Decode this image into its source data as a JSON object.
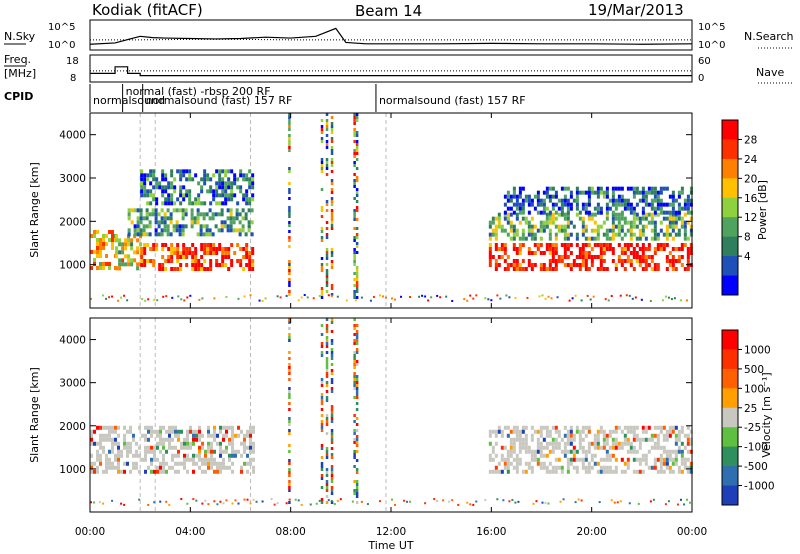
{
  "header": {
    "title_left": "Kodiak (fitACF)",
    "title_center": "Beam 14",
    "title_right": "19/Mar/2013"
  },
  "colors": {
    "axis": "#000000",
    "gap_dash": "#bbbbbb"
  },
  "chart_data": [
    {
      "type": "line",
      "panel": "noise",
      "left_label": "N.Sky",
      "right_label": "N.Search",
      "y_ticks_left": [
        "10^5",
        "10^0"
      ],
      "y_ticks_right": [
        "10^5",
        "10^0"
      ],
      "x_range_hours": [
        0,
        24
      ],
      "series": [
        {
          "style": "solid",
          "values_hours": [
            0,
            1,
            2,
            2.5,
            3,
            4,
            5,
            6,
            7,
            8,
            9,
            9.8,
            10.2,
            11,
            12,
            14,
            16,
            18,
            20,
            22,
            24
          ],
          "values_log10": [
            0.4,
            0.7,
            2.2,
            1.9,
            1.8,
            1.7,
            1.6,
            1.7,
            2.0,
            1.8,
            2.2,
            4.0,
            0.8,
            0.5,
            0.5,
            0.5,
            0.6,
            0.5,
            0.5,
            0.4,
            0.5
          ]
        },
        {
          "style": "dotted",
          "values_hours": [
            0,
            2,
            4,
            6,
            8,
            10,
            12,
            14,
            16,
            18,
            20,
            22,
            24
          ],
          "values_log10": [
            1.4,
            1.4,
            1.5,
            1.5,
            1.4,
            1.4,
            1.4,
            1.4,
            1.4,
            1.4,
            1.4,
            1.4,
            1.4
          ]
        }
      ]
    },
    {
      "type": "line",
      "panel": "frequency",
      "left_label_line1": "Freq.",
      "left_label_line2": "[MHz]",
      "right_label": "Nave",
      "y_ticks_left": [
        "18",
        "8"
      ],
      "y_ticks_right": [
        "60",
        "0"
      ],
      "series": [
        {
          "style": "solid",
          "values_hours": [
            0,
            1,
            1.5,
            2,
            6,
            8,
            10,
            12,
            14,
            16,
            18,
            20,
            22,
            24
          ],
          "values_mhz": [
            11,
            14,
            11,
            10,
            10,
            10,
            10,
            10,
            10,
            10,
            10,
            10,
            10,
            10
          ]
        },
        {
          "style": "dotted",
          "values_hours": [
            0,
            4,
            8,
            12,
            16,
            20,
            24
          ],
          "values_nave": [
            25,
            25,
            25,
            25,
            25,
            25,
            25
          ]
        }
      ]
    },
    {
      "type": "table",
      "panel": "cpid",
      "label": "CPID",
      "entries": [
        {
          "label": "normalsound",
          "start_hours": 0.0,
          "row": 1
        },
        {
          "label": "normal (fast) -rbsp 200 RF",
          "start_hours": 1.3,
          "row": 0
        },
        {
          "label": "normalsound (fast) 157 RF",
          "start_hours": 2.1,
          "row": 1
        },
        {
          "label": "normalsound (fast) 157 RF",
          "start_hours": 11.4,
          "row": 1
        }
      ]
    },
    {
      "type": "heatmap",
      "panel": "power",
      "ylabel": "Slant Range [km]",
      "ylim": [
        0,
        4500
      ],
      "y_ticks": [
        1000,
        2000,
        3000,
        4000
      ],
      "xlim_hours": [
        0,
        24
      ],
      "colorbar": {
        "label": "Power [dB]",
        "ticks": [
          "28",
          "24",
          "20",
          "16",
          "12",
          "8",
          "4"
        ],
        "colors": [
          "#0000ff",
          "#1f4fb8",
          "#2f7f5f",
          "#4fa35f",
          "#8fd03f",
          "#ffc000",
          "#ff7f00",
          "#ff3000",
          "#ff0000"
        ]
      },
      "bands": [
        {
          "t0": 0,
          "t1": 1.0,
          "r0": 900,
          "r1": 1800,
          "level": 0.65
        },
        {
          "t0": 1.0,
          "t1": 2.0,
          "r0": 900,
          "r1": 1700,
          "level": 0.55
        },
        {
          "t0": 2.0,
          "t1": 6.5,
          "r0": 900,
          "r1": 1500,
          "level": 0.85
        },
        {
          "t0": 1.5,
          "t1": 6.5,
          "r0": 1700,
          "r1": 2300,
          "level": 0.35
        },
        {
          "t0": 2.0,
          "t1": 6.5,
          "r0": 2400,
          "r1": 3200,
          "level": 0.25
        },
        {
          "t0": 15.9,
          "t1": 24,
          "r0": 900,
          "r1": 1500,
          "level": 0.9
        },
        {
          "t0": 15.9,
          "t1": 24,
          "r0": 1600,
          "r1": 2200,
          "level": 0.4
        },
        {
          "t0": 16.5,
          "t1": 24,
          "r0": 2200,
          "r1": 2800,
          "level": 0.2
        }
      ],
      "stripes_hours": [
        7.9,
        9.2,
        9.4,
        9.6,
        10.5,
        10.6
      ]
    },
    {
      "type": "heatmap",
      "panel": "velocity",
      "ylabel": "Slant Range [km]",
      "ylim": [
        0,
        4500
      ],
      "y_ticks": [
        1000,
        2000,
        3000,
        4000
      ],
      "xlabel": "Time UT",
      "x_ticks": [
        "00:00",
        "04:00",
        "08:00",
        "12:00",
        "16:00",
        "20:00",
        "00:00"
      ],
      "colorbar": {
        "label": "Velocity [m s⁻¹]",
        "ticks": [
          "1000",
          "500",
          "100",
          "25",
          "-25",
          "-100",
          "-500",
          "-1000"
        ],
        "colors": [
          "#1f3fb8",
          "#2f6faf",
          "#2f8f5f",
          "#5fbf3f",
          "#c8c8c0",
          "#ffa000",
          "#ff6000",
          "#ff3000",
          "#ff0000"
        ]
      },
      "bands": [
        {
          "t0": 0,
          "t1": 6.5,
          "r0": 900,
          "r1": 2000,
          "level": 0.5
        },
        {
          "t0": 15.9,
          "t1": 24,
          "r0": 900,
          "r1": 2000,
          "level": 0.5
        }
      ],
      "stripes_hours": [
        7.9,
        9.2,
        9.4,
        9.6,
        10.5,
        10.6
      ]
    }
  ]
}
